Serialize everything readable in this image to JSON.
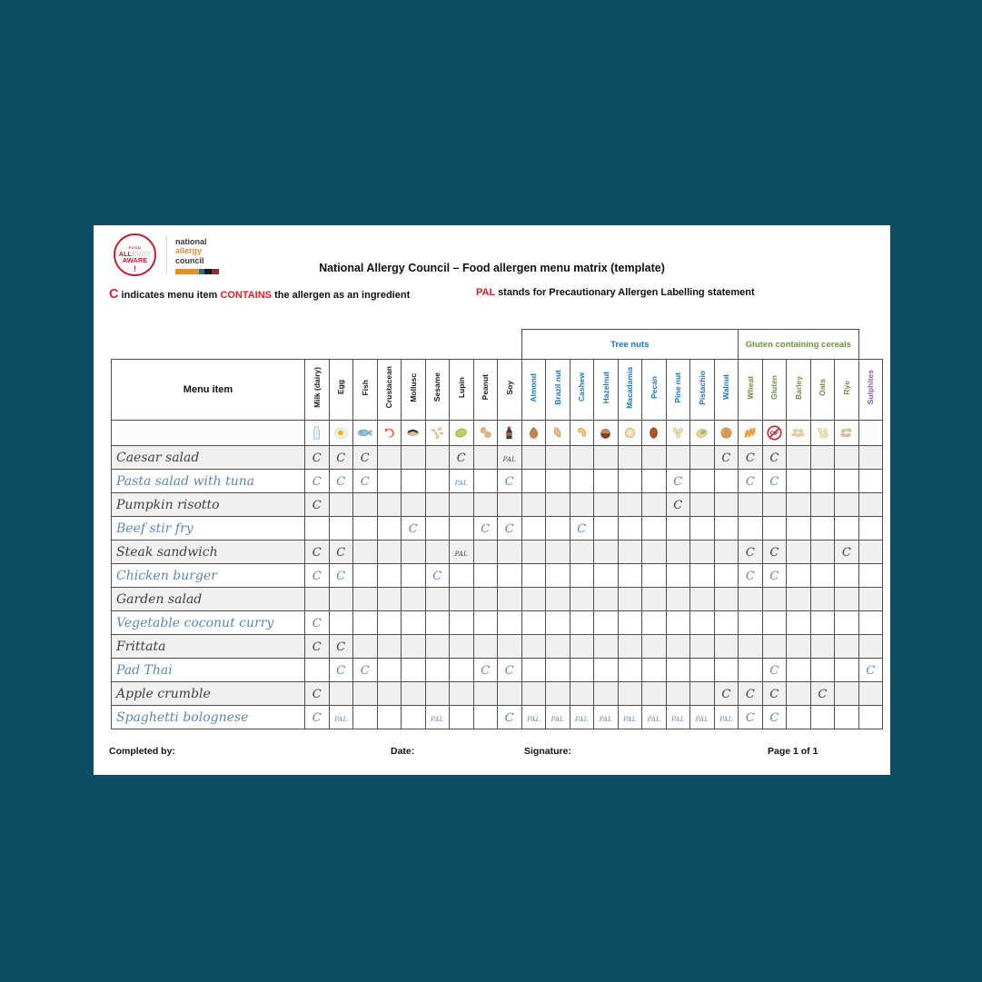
{
  "colors": {
    "page_background": "#0b4e63",
    "accent_red": "#d92128",
    "tree_nuts_blue": "#1b75bb",
    "cereals_green": "#6f9240",
    "sulphites_purple": "#7b63ae",
    "handwriting_blue": "#5d87b2",
    "handwriting_dark": "#3e4145",
    "logo_red": "#bf2233",
    "logo_orange": "#e0912f",
    "grid_line": "#4e4e4e",
    "row_shade": "#f0f0ee"
  },
  "page": {
    "title": "National Allergy Council – Food allergen menu matrix (template)",
    "legend": {
      "c_symbol": "C",
      "c_before": "indicates menu item",
      "c_keyword": "CONTAINS",
      "c_after": "the allergen as an ingredient",
      "pal_symbol": "PAL",
      "pal_text": "stands for Precautionary Allergen Labelling statement"
    },
    "logo": {
      "badge_top": "FOOD",
      "badge_all": "ALL",
      "badge_ergy": "ERGY",
      "badge_aware": "AWARE",
      "org_line1": "national",
      "org_line2": "allergy",
      "org_line3": "council"
    },
    "footer": {
      "completed_by": "Completed by:",
      "date": "Date:",
      "signature": "Signature:",
      "page_label": "Page 1 of 1"
    }
  },
  "table": {
    "menu_header": "Menu item",
    "mark_symbols": {
      "contains": "C",
      "precautionary": "PAL"
    },
    "groups": [
      {
        "label": "Tree nuts",
        "start": 9,
        "span": 9,
        "style": "treenuts"
      },
      {
        "label": "Gluten containing cereals",
        "start": 18,
        "span": 5,
        "style": "cereals"
      }
    ],
    "columns": [
      {
        "label": "Milk (dairy)",
        "icon": "milk-icon",
        "group": "base"
      },
      {
        "label": "Egg",
        "icon": "egg-icon",
        "group": "base"
      },
      {
        "label": "Fish",
        "icon": "fish-icon",
        "group": "base"
      },
      {
        "label": "Crustacean",
        "icon": "crustacean-icon",
        "group": "base"
      },
      {
        "label": "Mollusc",
        "icon": "mollusc-icon",
        "group": "base"
      },
      {
        "label": "Sesame",
        "icon": "sesame-icon",
        "group": "base"
      },
      {
        "label": "Lupin",
        "icon": "lupin-icon",
        "group": "base"
      },
      {
        "label": "Peanut",
        "icon": "peanut-icon",
        "group": "base"
      },
      {
        "label": "Soy",
        "icon": "soy-icon",
        "group": "base"
      },
      {
        "label": "Almond",
        "icon": "almond-icon",
        "group": "treenuts"
      },
      {
        "label": "Brazil nut",
        "icon": "brazil-nut-icon",
        "group": "treenuts"
      },
      {
        "label": "Cashew",
        "icon": "cashew-icon",
        "group": "treenuts"
      },
      {
        "label": "Hazelnut",
        "icon": "hazelnut-icon",
        "group": "treenuts"
      },
      {
        "label": "Macadamia",
        "icon": "macadamia-icon",
        "group": "treenuts"
      },
      {
        "label": "Pecan",
        "icon": "pecan-icon",
        "group": "treenuts"
      },
      {
        "label": "Pine nut",
        "icon": "pine-nut-icon",
        "group": "treenuts"
      },
      {
        "label": "Pistachio",
        "icon": "pistachio-icon",
        "group": "treenuts"
      },
      {
        "label": "Walnut",
        "icon": "walnut-icon",
        "group": "treenuts"
      },
      {
        "label": "Wheat",
        "icon": "wheat-icon",
        "group": "cereals"
      },
      {
        "label": "Gluten",
        "icon": "gluten-free-icon",
        "group": "cereals"
      },
      {
        "label": "Barley",
        "icon": "barley-icon",
        "group": "cereals"
      },
      {
        "label": "Oats",
        "icon": "oats-icon",
        "group": "cereals"
      },
      {
        "label": "Rye",
        "icon": "rye-icon",
        "group": "cereals"
      },
      {
        "label": "Sulphites",
        "icon": "none",
        "group": "sulphites"
      }
    ],
    "rows": [
      {
        "name": "Caesar salad",
        "marks": {
          "0": "C",
          "1": "C",
          "2": "C",
          "6": "C",
          "8": "PAL",
          "17": "C",
          "18": "C",
          "19": "C"
        }
      },
      {
        "name": "Pasta salad with tuna",
        "marks": {
          "0": "C",
          "1": "C",
          "2": "C",
          "6": "PAL",
          "8": "C",
          "15": "C",
          "18": "C",
          "19": "C"
        }
      },
      {
        "name": "Pumpkin risotto",
        "marks": {
          "0": "C",
          "15": "C"
        }
      },
      {
        "name": "Beef stir fry",
        "marks": {
          "4": "C",
          "7": "C",
          "8": "C",
          "11": "C"
        }
      },
      {
        "name": "Steak sandwich",
        "marks": {
          "0": "C",
          "1": "C",
          "6": "PAL",
          "18": "C",
          "19": "C",
          "22": "C"
        }
      },
      {
        "name": "Chicken burger",
        "marks": {
          "0": "C",
          "1": "C",
          "5": "C",
          "18": "C",
          "19": "C"
        }
      },
      {
        "name": "Garden salad",
        "marks": {}
      },
      {
        "name": "Vegetable coconut curry",
        "marks": {
          "0": "C"
        }
      },
      {
        "name": "Frittata",
        "marks": {
          "0": "C",
          "1": "C"
        }
      },
      {
        "name": "Pad Thai",
        "marks": {
          "1": "C",
          "2": "C",
          "7": "C",
          "8": "C",
          "19": "C",
          "23": "C"
        }
      },
      {
        "name": "Apple crumble",
        "marks": {
          "0": "C",
          "17": "C",
          "18": "C",
          "19": "C",
          "21": "C"
        }
      },
      {
        "name": "Spaghetti bolognese",
        "marks": {
          "0": "C",
          "1": "PAL",
          "5": "PAL",
          "8": "C",
          "9": "PAL",
          "10": "PAL",
          "11": "PAL",
          "12": "PAL",
          "13": "PAL",
          "14": "PAL",
          "15": "PAL",
          "16": "PAL",
          "17": "PAL",
          "18": "C",
          "19": "C"
        }
      }
    ]
  }
}
